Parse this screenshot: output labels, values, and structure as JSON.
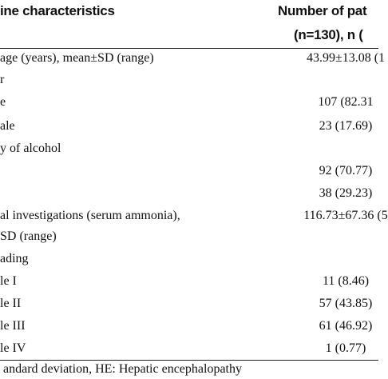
{
  "header": {
    "left": "ine characteristics",
    "right": [
      "Number of pat",
      "(n=130), n ("
    ]
  },
  "rows": [
    {
      "label": "age (years), mean±SD (range)",
      "value": "43.99±13.08 (1"
    },
    {
      "label": "r"
    },
    {
      "label": "e",
      "value": "107 (82.31"
    },
    {
      "label": "ale",
      "value": "23 (17.69)"
    },
    {
      "label": "y of alcohol"
    },
    {
      "value": "92 (70.77)"
    },
    {
      "value": "38 (29.23)"
    },
    {
      "label": "al investigations (serum ammonia),",
      "value": "116.73±67.36 (5"
    },
    {
      "label": "SD (range)"
    },
    {
      "label": "ading"
    },
    {
      "label": "le I",
      "value": "11 (8.46)"
    },
    {
      "label": "le II",
      "value": "57 (43.85)"
    },
    {
      "label": "le III",
      "value": "61 (46.92)"
    },
    {
      "label": "le IV",
      "value": "1 (0.77)"
    }
  ],
  "footnote": "andard deviation, HE: Hepatic encephalopathy"
}
